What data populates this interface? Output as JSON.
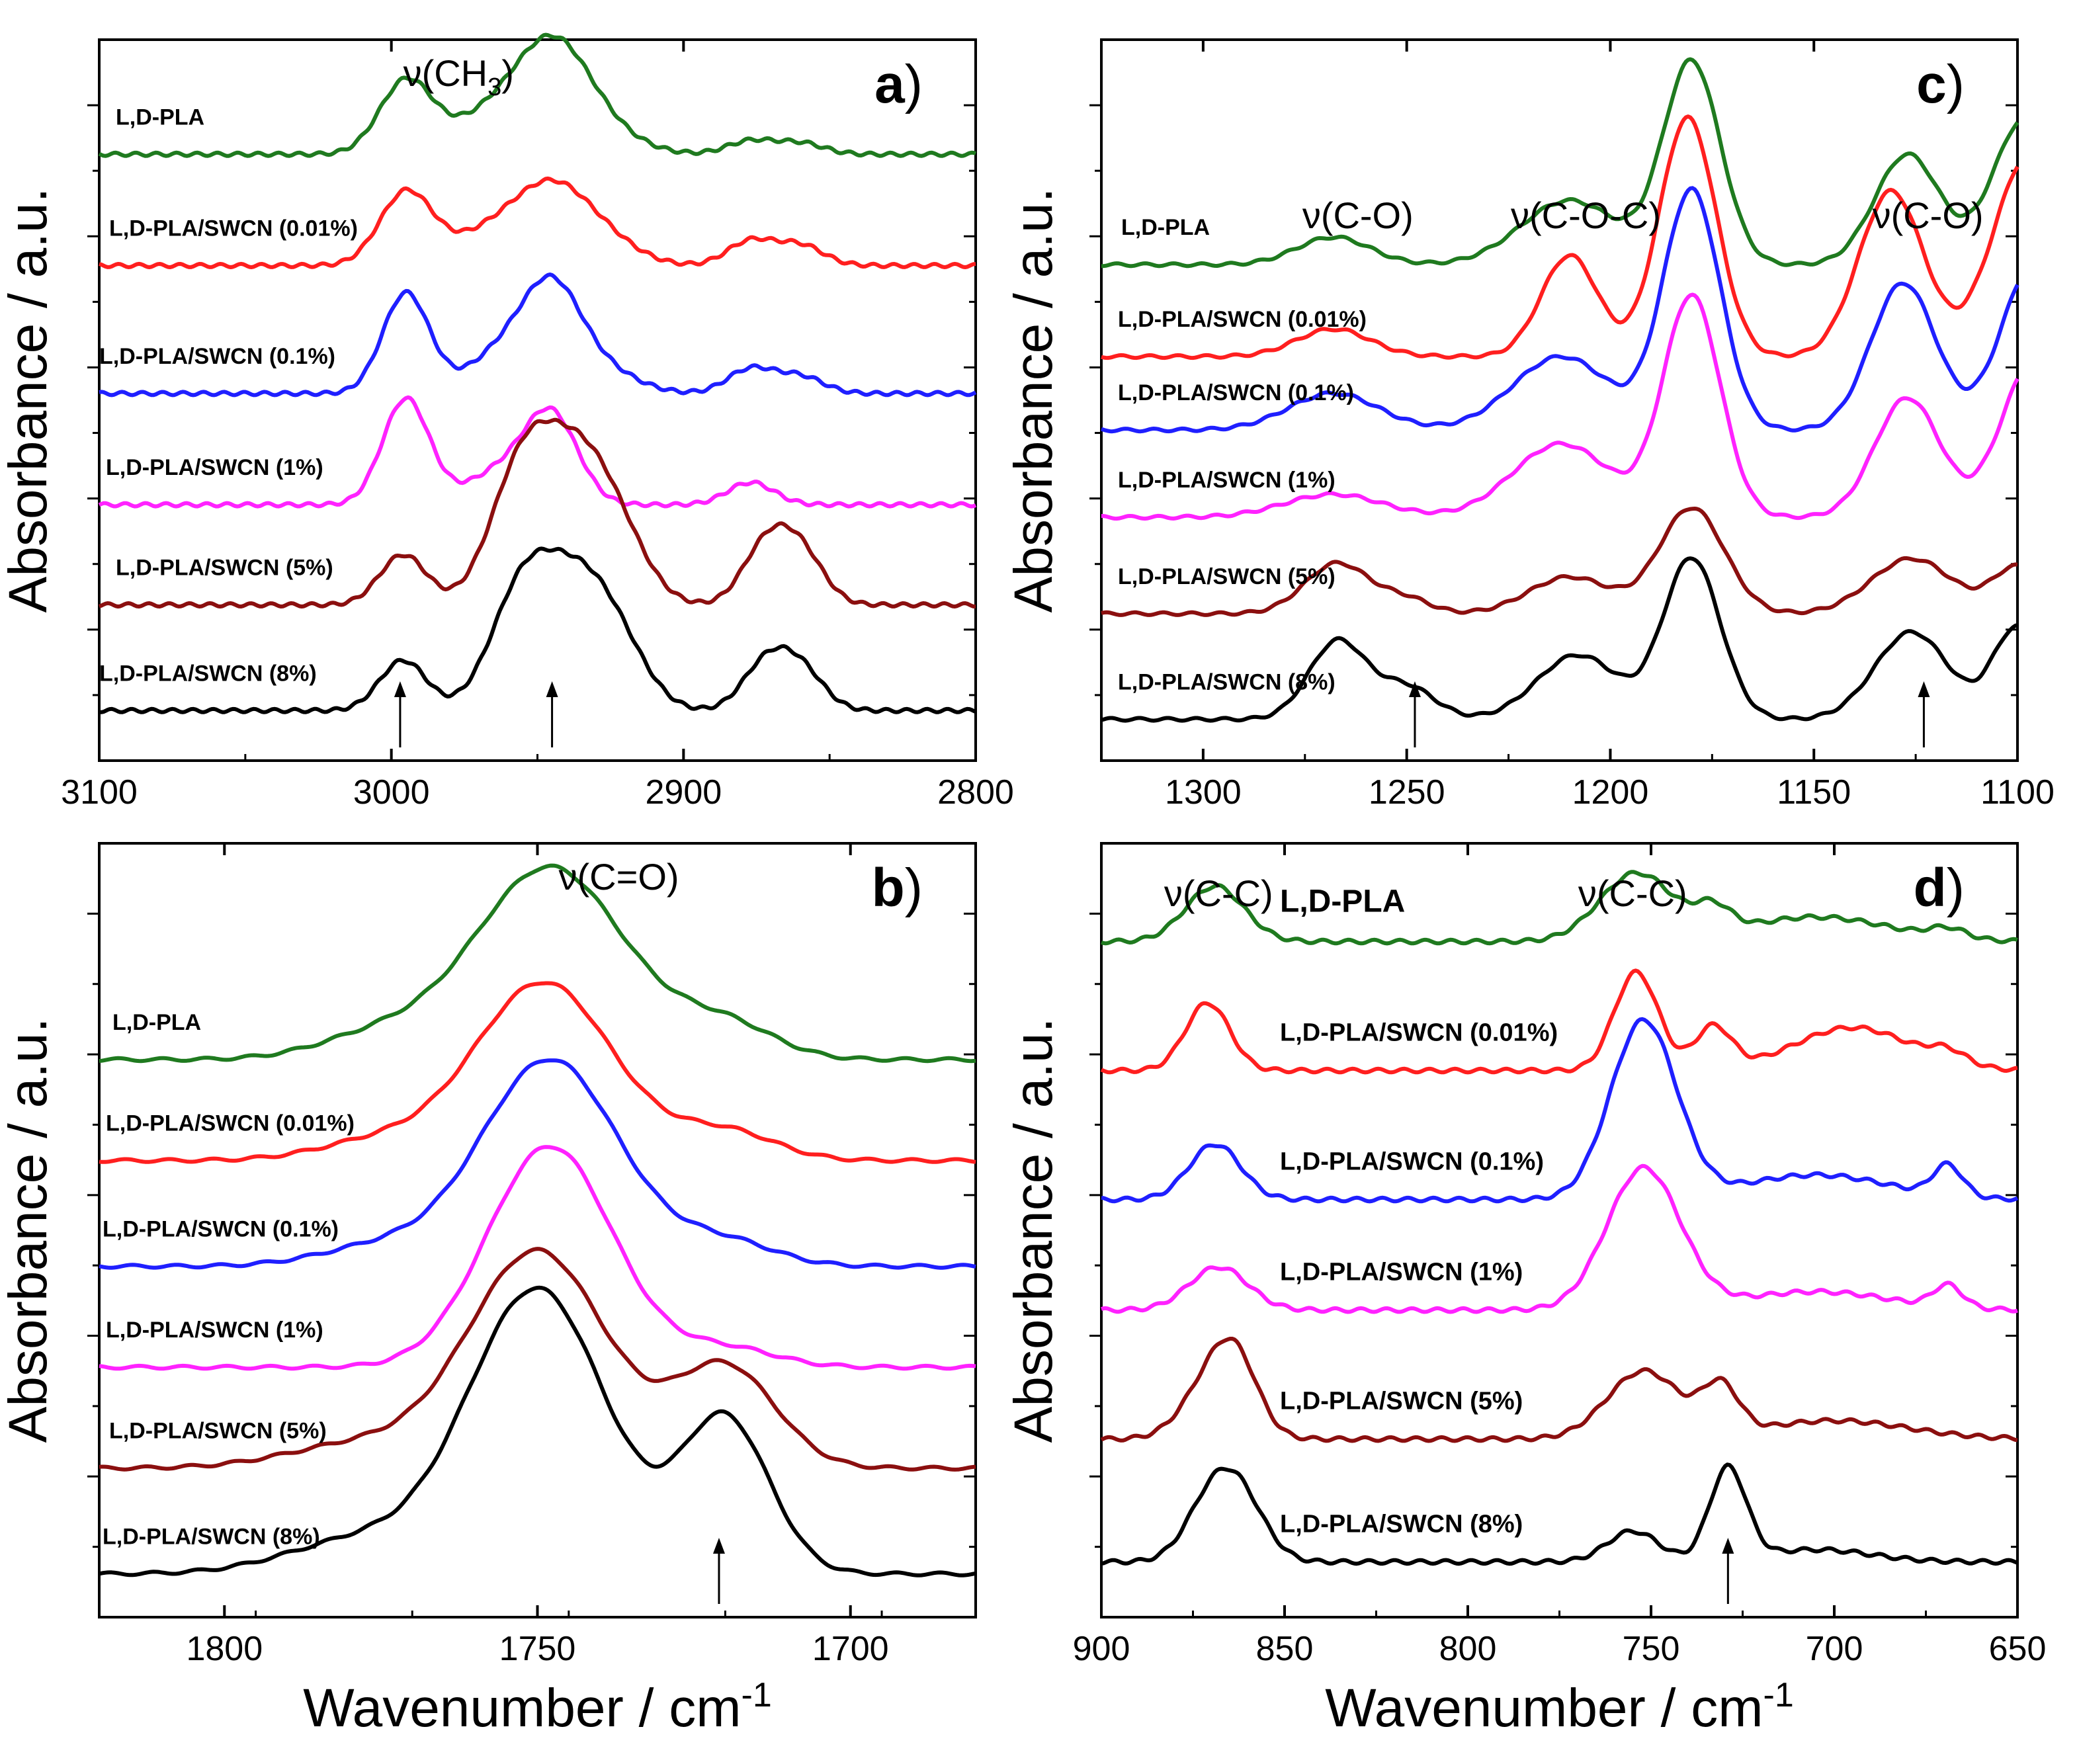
{
  "colors": {
    "green": "#1f7a1f",
    "red": "#ff1f1f",
    "blue": "#1f1fff",
    "magenta": "#ff22ff",
    "darkred": "#8b0f0f",
    "black": "#000000"
  },
  "chart_data": [
    {
      "id": "a",
      "type": "line",
      "panel_letter": "a",
      "xlim": [
        3100,
        2800
      ],
      "xticks": [
        "3100",
        "3000",
        "2900",
        "2800"
      ],
      "xtick_values": [
        3100,
        3000,
        2900,
        2800
      ],
      "xlabel": "",
      "ylabel": "Absorbance / a.u.",
      "annotations": [
        {
          "text": "ν(CH",
          "sub": "3",
          "tail": ")",
          "x": 2977
        }
      ],
      "arrows": [
        2997,
        2945
      ],
      "series": [
        {
          "name": "L,D-PLA",
          "color": "green",
          "offset": 5.0,
          "baseline": 0.0,
          "peaks": [
            [
              2995,
              0.65,
              9
            ],
            [
              2965,
              0.35,
              14
            ],
            [
              2945,
              0.78,
              12
            ],
            [
              2932,
              0.25,
              14
            ],
            [
              2877,
              0.12,
              8
            ],
            [
              2860,
              0.1,
              8
            ]
          ]
        },
        {
          "name": "L,D-PLA/SWCN (0.01%)",
          "color": "red",
          "offset": 4.0,
          "baseline": 0.0,
          "peaks": [
            [
              2995,
              0.65,
              9
            ],
            [
              2965,
              0.3,
              14
            ],
            [
              2945,
              0.58,
              12
            ],
            [
              2928,
              0.22,
              12
            ],
            [
              2877,
              0.22,
              8
            ],
            [
              2860,
              0.18,
              8
            ]
          ]
        },
        {
          "name": "L,D-PLA/SWCN (0.1%)",
          "color": "blue",
          "offset": 2.85,
          "baseline": 0.0,
          "peaks": [
            [
              2995,
              0.9,
              8
            ],
            [
              2962,
              0.35,
              12
            ],
            [
              2945,
              0.85,
              10
            ],
            [
              2928,
              0.2,
              12
            ],
            [
              2877,
              0.22,
              8
            ],
            [
              2860,
              0.15,
              8
            ]
          ]
        },
        {
          "name": "L,D-PLA/SWCN (1%)",
          "color": "magenta",
          "offset": 1.85,
          "baseline": 0.0,
          "peaks": [
            [
              2995,
              0.95,
              8
            ],
            [
              2962,
              0.3,
              12
            ],
            [
              2945,
              0.75,
              9
            ],
            [
              2877,
              0.2,
              8
            ]
          ]
        },
        {
          "name": "L,D-PLA/SWCN (5%)",
          "color": "darkred",
          "offset": 0.95,
          "baseline": 0.0,
          "peaks": [
            [
              2996,
              0.45,
              8
            ],
            [
              2955,
              1.2,
              11
            ],
            [
              2935,
              1.2,
              12
            ],
            [
              2920,
              0.3,
              10
            ],
            [
              2872,
              0.5,
              8
            ],
            [
              2860,
              0.45,
              8
            ]
          ]
        },
        {
          "name": "L,D-PLA/SWCN (8%)",
          "color": "black",
          "offset": 0.0,
          "baseline": 0.0,
          "peaks": [
            [
              2996,
              0.45,
              8
            ],
            [
              2955,
              1.05,
              11
            ],
            [
              2935,
              1.05,
              12
            ],
            [
              2920,
              0.3,
              10
            ],
            [
              2872,
              0.4,
              8
            ],
            [
              2860,
              0.35,
              8
            ]
          ]
        }
      ]
    },
    {
      "id": "b",
      "type": "line",
      "panel_letter": "b",
      "xlim": [
        1820,
        1680
      ],
      "xticks": [
        "1800",
        "1750",
        "1700"
      ],
      "xtick_values": [
        1800,
        1750,
        1700
      ],
      "xlabel": "Wavenumber / cm",
      "xlabel_sup": "-1",
      "ylabel": "Absorbance / a.u.",
      "annotations": [
        {
          "text": "ν(C=O)",
          "sub": "",
          "tail": "",
          "x": 1737
        }
      ],
      "arrows": [
        1721
      ],
      "series": [
        {
          "name": "L,D-PLA",
          "color": "green",
          "offset": 5.1,
          "baseline": 0.0,
          "peaks": [
            [
              1748,
              2.0,
              12
            ],
            [
              1720,
              0.35,
              8
            ],
            [
              1775,
              0.25,
              10
            ]
          ]
        },
        {
          "name": "L,D-PLA/SWCN (0.01%)",
          "color": "red",
          "offset": 4.05,
          "baseline": 0.0,
          "peaks": [
            [
              1749,
              1.85,
              11
            ],
            [
              1720,
              0.3,
              8
            ],
            [
              1775,
              0.2,
              10
            ]
          ]
        },
        {
          "name": "L,D-PLA/SWCN (0.1%)",
          "color": "blue",
          "offset": 2.95,
          "baseline": 0.0,
          "peaks": [
            [
              1748,
              2.15,
              11
            ],
            [
              1720,
              0.25,
              8
            ],
            [
              1775,
              0.2,
              10
            ]
          ]
        },
        {
          "name": "L,D-PLA/SWCN (1%)",
          "color": "magenta",
          "offset": 1.9,
          "baseline": 0.0,
          "peaks": [
            [
              1748,
              2.3,
              10
            ],
            [
              1720,
              0.2,
              8
            ]
          ]
        },
        {
          "name": "L,D-PLA/SWCN (5%)",
          "color": "darkred",
          "offset": 0.85,
          "baseline": 0.0,
          "peaks": [
            [
              1750,
              2.25,
              11
            ],
            [
              1720,
              1.05,
              8
            ],
            [
              1778,
              0.25,
              12
            ]
          ]
        },
        {
          "name": "L,D-PLA/SWCN (8%)",
          "color": "black",
          "offset": -0.25,
          "baseline": 0.0,
          "peaks": [
            [
              1750,
              2.95,
              11
            ],
            [
              1720,
              1.6,
              7
            ],
            [
              1778,
              0.35,
              12
            ]
          ]
        }
      ]
    },
    {
      "id": "c",
      "type": "line",
      "panel_letter": "c",
      "xlim": [
        1325,
        1100
      ],
      "xticks": [
        "1300",
        "1250",
        "1200",
        "1150",
        "1100"
      ],
      "xtick_values": [
        1300,
        1250,
        1200,
        1150,
        1100
      ],
      "xlabel": "",
      "ylabel": "Absorbance / a.u.",
      "annotations": [
        {
          "text": "ν(C-O)",
          "sub": "",
          "tail": "",
          "x": 1262
        },
        {
          "text": "ν(C-O-C)",
          "sub": "",
          "tail": "",
          "x": 1206
        },
        {
          "text": "ν(C-O)",
          "sub": "",
          "tail": "",
          "x": 1122
        }
      ],
      "arrows": [
        1248,
        1123
      ],
      "series": [
        {
          "name": "L,D-PLA",
          "color": "green",
          "offset": 4.95,
          "baseline": 0.0,
          "peaks": [
            [
              1268,
              0.3,
              9
            ],
            [
              1210,
              0.7,
              12
            ],
            [
              1180,
              2.2,
              7
            ],
            [
              1127,
              1.2,
              8
            ],
            [
              1098,
              1.6,
              8
            ]
          ]
        },
        {
          "name": "L,D-PLA/SWCN (0.01%)",
          "color": "red",
          "offset": 3.95,
          "baseline": 0.0,
          "peaks": [
            [
              1268,
              0.3,
              9
            ],
            [
              1210,
              1.1,
              7
            ],
            [
              1181,
              2.6,
              7
            ],
            [
              1131,
              1.8,
              8
            ],
            [
              1097,
              2.2,
              9
            ]
          ]
        },
        {
          "name": "L,D-PLA/SWCN (0.1%)",
          "color": "blue",
          "offset": 3.15,
          "baseline": 0.0,
          "peaks": [
            [
              1268,
              0.4,
              11
            ],
            [
              1212,
              0.8,
              12
            ],
            [
              1180,
              2.6,
              7
            ],
            [
              1128,
              1.6,
              8
            ],
            [
              1096,
              1.8,
              8
            ]
          ]
        },
        {
          "name": "L,D-PLA/SWCN (1%)",
          "color": "magenta",
          "offset": 2.2,
          "baseline": 0.0,
          "peaks": [
            [
              1268,
              0.25,
              12
            ],
            [
              1212,
              0.8,
              12
            ],
            [
              1180,
              2.4,
              7
            ],
            [
              1127,
              1.3,
              8
            ],
            [
              1096,
              1.7,
              8
            ]
          ]
        },
        {
          "name": "L,D-PLA/SWCN (5%)",
          "color": "darkred",
          "offset": 1.15,
          "baseline": 0.0,
          "peaks": [
            [
              1267,
              0.55,
              8
            ],
            [
              1250,
              0.15,
              6
            ],
            [
              1210,
              0.4,
              10
            ],
            [
              1180,
              1.15,
              8
            ],
            [
              1126,
              0.6,
              10
            ],
            [
              1100,
              0.5,
              6
            ]
          ]
        },
        {
          "name": "L,D-PLA/SWCN (8%)",
          "color": "black",
          "offset": 0.0,
          "baseline": 0.0,
          "peaks": [
            [
              1267,
              0.85,
              7
            ],
            [
              1250,
              0.35,
              7
            ],
            [
              1208,
              0.7,
              10
            ],
            [
              1180,
              1.75,
              7
            ],
            [
              1126,
              0.95,
              9
            ],
            [
              1100,
              1.0,
              6
            ]
          ]
        }
      ]
    },
    {
      "id": "d",
      "type": "line",
      "panel_letter": "d",
      "xlim": [
        900,
        650
      ],
      "xticks": [
        "900",
        "850",
        "800",
        "750",
        "700",
        "650"
      ],
      "xtick_values": [
        900,
        850,
        800,
        750,
        700,
        650
      ],
      "xlabel": "Wavenumber / cm",
      "xlabel_sup": "-1",
      "ylabel": "Absorbance / a.u.",
      "annotations": [
        {
          "text": "ν(C-C)",
          "sub": "",
          "tail": "",
          "x": 868
        },
        {
          "text": "ν(C-C)",
          "sub": "",
          "tail": "",
          "x": 755
        }
      ],
      "arrows": [
        729
      ],
      "series": [
        {
          "name": "L,D-PLA",
          "color": "green",
          "offset": 5.05,
          "baseline": 0.0,
          "peaks": [
            [
              869,
              0.45,
              8
            ],
            [
              754,
              0.55,
              10
            ],
            [
              733,
              0.2,
              5
            ],
            [
              705,
              0.2,
              20
            ],
            [
              669,
              0.08,
              5
            ]
          ]
        },
        {
          "name": "L,D-PLA/SWCN (0.01%)",
          "color": "red",
          "offset": 4.0,
          "baseline": 0.0,
          "peaks": [
            [
              871,
              0.55,
              6
            ],
            [
              754,
              0.8,
              6
            ],
            [
              733,
              0.35,
              5
            ],
            [
              695,
              0.35,
              16
            ],
            [
              669,
              0.1,
              5
            ]
          ]
        },
        {
          "name": "L,D-PLA/SWCN (0.1%)",
          "color": "blue",
          "offset": 2.95,
          "baseline": 0.0,
          "peaks": [
            [
              869,
              0.45,
              7
            ],
            [
              752,
              1.45,
              9
            ],
            [
              705,
              0.2,
              20
            ],
            [
              669,
              0.25,
              4
            ]
          ]
        },
        {
          "name": "L,D-PLA/SWCN (1%)",
          "color": "magenta",
          "offset": 2.05,
          "baseline": 0.0,
          "peaks": [
            [
              868,
              0.35,
              8
            ],
            [
              752,
              1.15,
              10
            ],
            [
              705,
              0.15,
              20
            ],
            [
              669,
              0.18,
              4
            ]
          ]
        },
        {
          "name": "L,D-PLA/SWCN (5%)",
          "color": "darkred",
          "offset": 1.0,
          "baseline": 0.0,
          "peaks": [
            [
              869,
              0.5,
              8
            ],
            [
              863,
              0.4,
              6
            ],
            [
              752,
              0.55,
              10
            ],
            [
              731,
              0.38,
              5
            ],
            [
              700,
              0.15,
              20
            ]
          ]
        },
        {
          "name": "L,D-PLA/SWCN (8%)",
          "color": "black",
          "offset": 0.0,
          "baseline": 0.0,
          "peaks": [
            [
              870,
              0.45,
              7
            ],
            [
              862,
              0.45,
              7
            ],
            [
              755,
              0.25,
              7
            ],
            [
              729,
              0.75,
              5
            ],
            [
              705,
              0.1,
              15
            ]
          ]
        }
      ]
    }
  ]
}
